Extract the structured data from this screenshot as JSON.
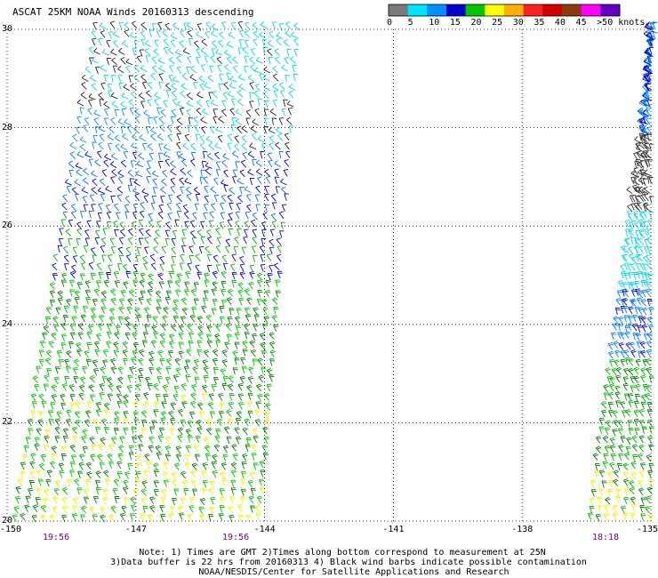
{
  "title": "ASCAT 25KM NOAA Winds 20160313 descending",
  "legend": {
    "labels": [
      "0",
      "5",
      "10",
      "15",
      "20",
      "25",
      "30",
      "35",
      "40",
      "45",
      ">50 knots"
    ],
    "colors": [
      "#7a7a7a",
      "#00e5ff",
      "#0090ff",
      "#0000d0",
      "#00c800",
      "#ffff00",
      "#ffb000",
      "#ff2020",
      "#d00000",
      "#8b3a10",
      "#ff00ff",
      "#6000c0"
    ]
  },
  "axes": {
    "lat_ticks": [
      "30",
      "28",
      "26",
      "24",
      "22",
      "20"
    ],
    "lon_ticks": [
      "-150",
      "-147",
      "-144",
      "-141",
      "-138",
      "-135"
    ],
    "lat_range": [
      20,
      30
    ],
    "lon_range": [
      -150,
      -135
    ]
  },
  "times": [
    "19:56",
    "19:56",
    "18:18"
  ],
  "notes": [
    "Note: 1) Times are GMT 2)Times along bottom correspond to measurement at 25N",
    "3)Data buffer is 22 hrs from 20160313 4) Black wind barbs indicate possible contamination",
    "NOAA/NESDIS/Center for Satellite Applications and Research"
  ],
  "swaths": [
    {
      "name": "west-swath",
      "corners": [
        [
          -149.8,
          20.0
        ],
        [
          -144.1,
          20.0
        ],
        [
          -143.2,
          30.0
        ],
        [
          -147.9,
          30.0
        ]
      ]
    },
    {
      "name": "east-swath",
      "corners": [
        [
          -136.4,
          20.0
        ],
        [
          -135.0,
          20.0
        ],
        [
          -135.0,
          30.0
        ],
        [
          -134.9,
          30.0
        ]
      ]
    }
  ]
}
